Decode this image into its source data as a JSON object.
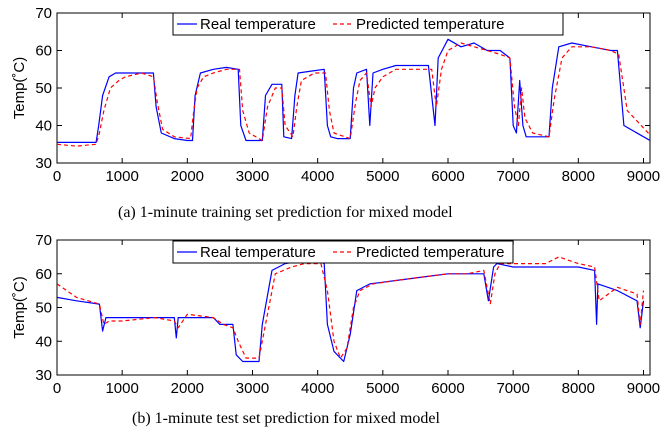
{
  "chart_data": [
    {
      "type": "line",
      "ylabel": "Temp(˚C)",
      "caption": "(a)  1-minute training set prediction for mixed model",
      "xlim": [
        0,
        9100
      ],
      "ylim": [
        30,
        70
      ],
      "xticks": [
        0,
        1000,
        2000,
        3000,
        4000,
        5000,
        6000,
        7000,
        8000,
        9000
      ],
      "yticks": [
        30,
        40,
        50,
        60,
        70
      ],
      "legend": "top-center",
      "grid": false,
      "series": [
        {
          "name": "Real temperature",
          "color": "#0000ff",
          "style": "solid",
          "x": [
            0,
            600,
            640,
            700,
            800,
            900,
            1000,
            1200,
            1480,
            1520,
            1600,
            1800,
            2000,
            2080,
            2120,
            2200,
            2400,
            2600,
            2780,
            2820,
            2900,
            3000,
            3150,
            3200,
            3300,
            3450,
            3480,
            3600,
            3650,
            3700,
            3900,
            4100,
            4150,
            4200,
            4300,
            4500,
            4550,
            4600,
            4750,
            4800,
            4850,
            5000,
            5200,
            5400,
            5700,
            5800,
            5850,
            6000,
            6200,
            6400,
            6600,
            6800,
            6950,
            7000,
            7050,
            7100,
            7150,
            7200,
            7300,
            7550,
            7600,
            7700,
            7900,
            8200,
            8500,
            8600,
            8700,
            9100
          ],
          "y": [
            35.5,
            35.5,
            40,
            48,
            53,
            54,
            54,
            54,
            54,
            45,
            38,
            36.5,
            36,
            36,
            48,
            54,
            55,
            55.5,
            55,
            40,
            36,
            36,
            36,
            48,
            51,
            51,
            37,
            36.5,
            48,
            54,
            54.5,
            55,
            40,
            37,
            36.5,
            36.5,
            50,
            54,
            55,
            40,
            54,
            55,
            56,
            56,
            56,
            40,
            58,
            63,
            61,
            62,
            60,
            60,
            58,
            40,
            38,
            52,
            40,
            37,
            37,
            37,
            50,
            61,
            62,
            61,
            60,
            60,
            40,
            36
          ]
        },
        {
          "name": "Predicted temperature",
          "color": "#ff0000",
          "style": "dashed",
          "x": [
            0,
            300,
            600,
            650,
            720,
            820,
            950,
            1050,
            1300,
            1480,
            1540,
            1620,
            1800,
            2050,
            2100,
            2150,
            2250,
            2400,
            2600,
            2800,
            2850,
            2950,
            3150,
            3230,
            3350,
            3450,
            3500,
            3620,
            3680,
            3750,
            3950,
            4120,
            4180,
            4250,
            4500,
            4580,
            4650,
            4750,
            4820,
            4880,
            5000,
            5200,
            5500,
            5750,
            5820,
            5900,
            6000,
            6200,
            6400,
            6600,
            6800,
            6950,
            7020,
            7080,
            7130,
            7180,
            7300,
            7550,
            7630,
            7750,
            7900,
            8200,
            8500,
            8620,
            8750,
            9100
          ],
          "y": [
            35,
            34.5,
            35,
            38,
            44,
            50,
            52,
            53,
            54,
            53,
            46,
            39,
            37,
            36.5,
            44,
            50,
            53,
            54,
            55,
            55,
            44,
            38,
            36,
            45,
            50,
            50,
            40,
            37,
            45,
            52,
            54,
            54,
            44,
            38,
            36.5,
            46,
            52,
            54,
            45,
            50,
            53,
            55,
            55,
            55,
            45,
            55,
            60,
            62,
            61,
            60,
            59,
            58,
            45,
            40,
            50,
            42,
            38,
            37,
            47,
            58,
            61,
            61,
            60,
            59,
            44,
            37.5
          ]
        }
      ]
    },
    {
      "type": "line",
      "ylabel": "Temp(˚C)",
      "caption": "(b)  1-minute test set prediction for mixed model",
      "xlim": [
        0,
        9100
      ],
      "ylim": [
        30,
        70
      ],
      "xticks": [
        0,
        1000,
        2000,
        3000,
        4000,
        5000,
        6000,
        7000,
        8000,
        9000
      ],
      "yticks": [
        30,
        40,
        50,
        60,
        70
      ],
      "legend": "top-center",
      "grid": false,
      "series": [
        {
          "name": "Real temperature",
          "color": "#0000ff",
          "style": "solid",
          "x": [
            0,
            300,
            650,
            700,
            750,
            1000,
            1500,
            1800,
            1830,
            1860,
            2000,
            2400,
            2500,
            2700,
            2750,
            2850,
            3100,
            3150,
            3300,
            3500,
            3800,
            4000,
            4100,
            4150,
            4250,
            4400,
            4500,
            4600,
            4800,
            5200,
            5600,
            6000,
            6300,
            6550,
            6620,
            6700,
            6750,
            7000,
            7500,
            8000,
            8250,
            8280,
            8300,
            8600,
            8900,
            8950,
            9000
          ],
          "y": [
            53,
            52,
            51,
            43,
            47,
            47,
            47,
            47,
            41,
            47,
            47,
            47,
            45,
            45,
            36,
            34,
            34,
            45,
            61,
            63,
            64,
            64,
            63,
            45,
            37,
            34,
            42,
            55,
            57,
            58,
            59,
            60,
            60,
            60,
            52,
            62,
            63,
            62,
            62,
            62,
            61,
            45,
            57,
            55,
            52,
            44,
            52
          ]
        },
        {
          "name": "Predicted temperature",
          "color": "#ff0000",
          "style": "dashed",
          "x": [
            0,
            300,
            650,
            720,
            800,
            1000,
            1500,
            1800,
            1860,
            2000,
            2400,
            2550,
            2700,
            2780,
            2900,
            3100,
            3200,
            3350,
            3600,
            3800,
            4050,
            4150,
            4250,
            4350,
            4450,
            4550,
            4650,
            4850,
            5200,
            5600,
            6000,
            6300,
            6550,
            6650,
            6720,
            6800,
            7000,
            7500,
            7700,
            8000,
            8250,
            8320,
            8600,
            8900,
            8950,
            9000
          ],
          "y": [
            57,
            53,
            51,
            45,
            46,
            46,
            47,
            46,
            44,
            48,
            47,
            45,
            44,
            40,
            35,
            35,
            45,
            60,
            62,
            63,
            63,
            55,
            40,
            35,
            38,
            50,
            55,
            57,
            58,
            59,
            60,
            60,
            61,
            51,
            60,
            63,
            63,
            63,
            65,
            63,
            62,
            52,
            56,
            54,
            45,
            55
          ]
        }
      ]
    }
  ]
}
